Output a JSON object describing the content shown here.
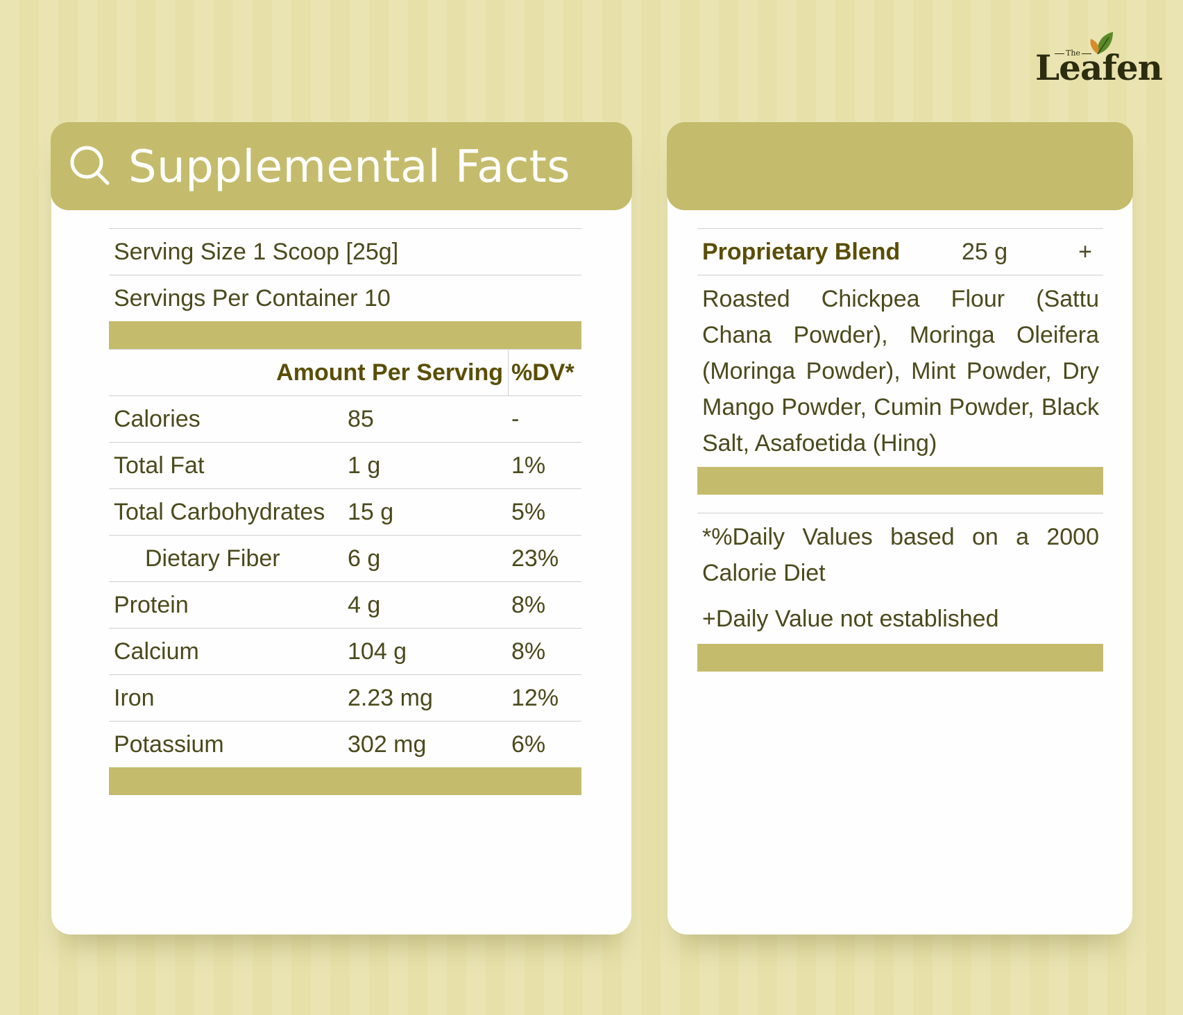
{
  "brand": {
    "small": "The",
    "name": "Leafen"
  },
  "left_card": {
    "title": "Supplemental Facts",
    "serving_size": "Serving Size 1 Scoop [25g]",
    "servings_per_container": "Servings Per Container 10",
    "header": {
      "amount": "Amount Per Serving",
      "dv": "%DV*"
    },
    "rows": [
      {
        "name": "Calories",
        "amount": "85",
        "dv": "-"
      },
      {
        "name": "Total Fat",
        "amount": "1 g",
        "dv": "1%"
      },
      {
        "name": "Total Carbohydrates",
        "amount": "15 g",
        "dv": "5%"
      },
      {
        "name": "Dietary Fiber",
        "amount": "6 g",
        "dv": "23%"
      },
      {
        "name": "Protein",
        "amount": "4 g",
        "dv": "8%"
      },
      {
        "name": "Calcium",
        "amount": "104 g",
        "dv": "8%"
      },
      {
        "name": "Iron",
        "amount": "2.23 mg",
        "dv": "12%"
      },
      {
        "name": "Potassium",
        "amount": "302 mg",
        "dv": "6%"
      }
    ]
  },
  "right_card": {
    "blend": {
      "name": "Proprietary Blend",
      "amount": "25 g",
      "mark": "+"
    },
    "ingredients": "Roasted Chickpea Flour (Sattu Chana Powder), Moringa Oleifera (Moringa Powder), Mint Powder, Dry Mango Powder, Cumin Powder, Black Salt, Asafoetida (Hing)",
    "note_dv": "*%Daily Values based on a 2000 Calorie Diet",
    "note_plus": "+Daily Value not established"
  },
  "colors": {
    "accent": "#c4bc6c",
    "background": "#e7e1a9",
    "text": "#4a4a1c",
    "heading": "#5a4e05"
  },
  "icons": {
    "title_icon": "search-icon",
    "logo_leaf": "leaf-icon"
  }
}
